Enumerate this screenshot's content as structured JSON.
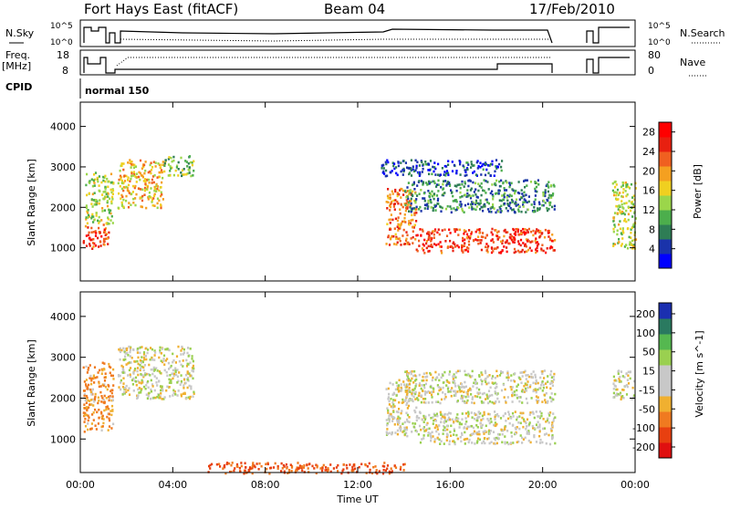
{
  "header": {
    "radar": "Fort Hays East (fitACF)",
    "beam": "Beam 04",
    "date": "17/Feb/2010"
  },
  "status_panels": {
    "nsky_label": "N.Sky",
    "nsky_ticks": [
      "10^5",
      "10^0"
    ],
    "nsearch_ticks": [
      "10^5",
      "10^0"
    ],
    "nsearch_label": "N.Search",
    "freq_label": "Freq.",
    "freq_unit": "[MHz]",
    "freq_ticks": [
      "18",
      "8"
    ],
    "nave_ticks": [
      "80",
      "0"
    ],
    "nave_label": "Nave",
    "cpid_label": "CPID",
    "cpid_value": "normal 150"
  },
  "colors": {
    "power_scale": [
      "#0000ff",
      "#1a33aa",
      "#2e7d55",
      "#4cae4c",
      "#9bd64a",
      "#f0d020",
      "#f5a020",
      "#f06020",
      "#e82010",
      "#ff0000"
    ],
    "velocity_scale": [
      "#1b2fb0",
      "#2a7a60",
      "#55b850",
      "#9ad050",
      "#c8c8c8",
      "#c8c8c8",
      "#f0b030",
      "#f07a20",
      "#e84010",
      "#e01010"
    ],
    "ground_scatter": "#c0c0c0"
  },
  "chart_data": [
    {
      "type": "heatmap",
      "name": "power",
      "xlabel": "Time UT",
      "ylabel": "Slant Range [km]",
      "x_ticks": [
        "00:00",
        "04:00",
        "08:00",
        "12:00",
        "16:00",
        "20:00",
        "00:00"
      ],
      "xlim_hours": [
        0,
        24
      ],
      "y_ticks": [
        1000,
        2000,
        3000,
        4000
      ],
      "ylim": [
        180,
        4600
      ],
      "colorbar_label": "Power [dB]",
      "colorbar_ticks": [
        4,
        8,
        12,
        16,
        20,
        24,
        28
      ],
      "colorbar_range": [
        0,
        30
      ],
      "regions": [
        {
          "t": [
            0.1,
            1.2
          ],
          "r": [
            1000,
            1600
          ],
          "value": 24
        },
        {
          "t": [
            0.2,
            1.4
          ],
          "r": [
            1600,
            2900
          ],
          "value": 14
        },
        {
          "t": [
            1.6,
            3.6
          ],
          "r": [
            2000,
            3200
          ],
          "value": 18
        },
        {
          "t": [
            3.6,
            4.9
          ],
          "r": [
            2800,
            3300
          ],
          "value": 12
        },
        {
          "t": [
            13.2,
            14.5
          ],
          "r": [
            1100,
            2500
          ],
          "value": 22
        },
        {
          "t": [
            14.5,
            20.5
          ],
          "r": [
            900,
            1500
          ],
          "value": 25
        },
        {
          "t": [
            14.0,
            20.5
          ],
          "r": [
            1900,
            2700
          ],
          "value": 8
        },
        {
          "t": [
            13.0,
            18.2
          ],
          "r": [
            2800,
            3200
          ],
          "value": 5
        },
        {
          "t": [
            23.0,
            24.0
          ],
          "r": [
            1000,
            2700
          ],
          "value": 14
        }
      ]
    },
    {
      "type": "heatmap",
      "name": "velocity",
      "xlabel": "Time UT",
      "ylabel": "Slant Range [km]",
      "x_ticks": [
        "00:00",
        "04:00",
        "08:00",
        "12:00",
        "16:00",
        "20:00",
        "00:00"
      ],
      "xlim_hours": [
        0,
        24
      ],
      "y_ticks": [
        1000,
        2000,
        3000,
        4000
      ],
      "ylim": [
        180,
        4600
      ],
      "colorbar_label": "Velocity [m s^-1]",
      "colorbar_ticks": [
        200,
        100,
        50,
        15,
        -15,
        -50,
        -100,
        -200
      ],
      "regions": [
        {
          "t": [
            0.1,
            1.4
          ],
          "r": [
            1200,
            2900
          ],
          "value": -40
        },
        {
          "t": [
            1.6,
            4.9
          ],
          "r": [
            2000,
            3300
          ],
          "value": 0
        },
        {
          "t": [
            13.2,
            14.5
          ],
          "r": [
            1100,
            2500
          ],
          "value": 0
        },
        {
          "t": [
            14.5,
            20.5
          ],
          "r": [
            900,
            1700
          ],
          "value": 0
        },
        {
          "t": [
            14.0,
            20.5
          ],
          "r": [
            1900,
            2700
          ],
          "value": 0
        },
        {
          "t": [
            5.5,
            14.0
          ],
          "r": [
            180,
            450
          ],
          "value": -80
        },
        {
          "t": [
            23.0,
            24.0
          ],
          "r": [
            2000,
            2700
          ],
          "value": 0
        }
      ]
    }
  ]
}
